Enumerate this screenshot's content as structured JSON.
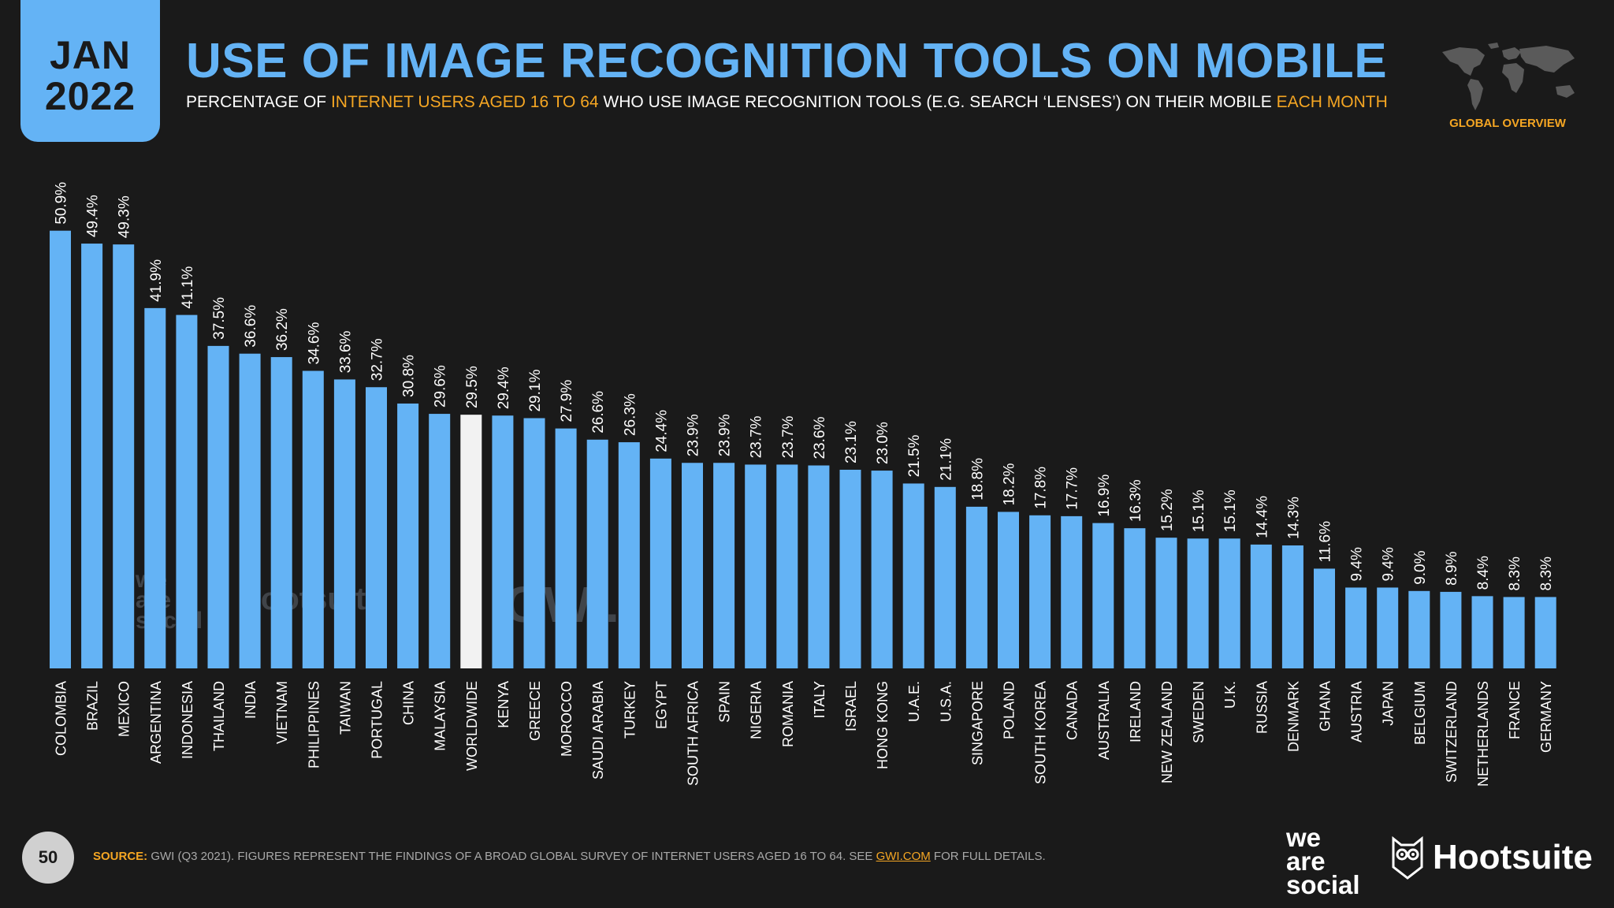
{
  "header": {
    "date_month": "JAN",
    "date_year": "2022",
    "title": "USE OF IMAGE RECOGNITION TOOLS ON MOBILE",
    "subtitle_part1": "PERCENTAGE OF ",
    "subtitle_highlight1": "INTERNET USERS AGED 16 TO 64",
    "subtitle_part2": " WHO USE IMAGE RECOGNITION TOOLS (E.G. SEARCH ‘LENSES’) ON THEIR MOBILE ",
    "subtitle_highlight2": "EACH MONTH",
    "global_overview": "GLOBAL OVERVIEW"
  },
  "footer": {
    "page_number": "50",
    "source_label": "SOURCE:",
    "source_text": " GWI (Q3 2021). FIGURES REPRESENT THE FINDINGS OF A BROAD GLOBAL SURVEY OF INTERNET USERS AGED 16 TO 64. SEE ",
    "source_link": "GWI.COM",
    "source_tail": " FOR FULL DETAILS.",
    "logo_we_are_social": [
      "we",
      "are",
      "social"
    ],
    "logo_hootsuite": "Hootsuite"
  },
  "watermarks": {
    "we_are_social": [
      "we",
      "are",
      "social"
    ],
    "hootsuite": "Hootsuite",
    "gwi": "GWI."
  },
  "colors": {
    "background": "#1a1a1a",
    "bar": "#64b3f5",
    "highlight_bar": "#f2f2f2",
    "accent": "#f5a623",
    "title": "#64b3f5"
  },
  "chart_data": {
    "type": "bar",
    "title": "USE OF IMAGE RECOGNITION TOOLS ON MOBILE",
    "xlabel": "",
    "ylabel": "",
    "ylim": [
      0,
      55
    ],
    "grid": false,
    "highlight_category": "WORLDWIDE",
    "categories": [
      "COLOMBIA",
      "BRAZIL",
      "MEXICO",
      "ARGENTINA",
      "INDONESIA",
      "THAILAND",
      "INDIA",
      "VIETNAM",
      "PHILIPPINES",
      "TAIWAN",
      "PORTUGAL",
      "CHINA",
      "MALAYSIA",
      "WORLDWIDE",
      "KENYA",
      "GREECE",
      "MOROCCO",
      "SAUDI ARABIA",
      "TURKEY",
      "EGYPT",
      "SOUTH AFRICA",
      "SPAIN",
      "NIGERIA",
      "ROMANIA",
      "ITALY",
      "ISRAEL",
      "HONG KONG",
      "U.A.E.",
      "U.S.A.",
      "SINGAPORE",
      "POLAND",
      "SOUTH KOREA",
      "CANADA",
      "AUSTRALIA",
      "IRELAND",
      "NEW ZEALAND",
      "SWEDEN",
      "U.K.",
      "RUSSIA",
      "DENMARK",
      "GHANA",
      "AUSTRIA",
      "JAPAN",
      "BELGIUM",
      "SWITZERLAND",
      "NETHERLANDS",
      "FRANCE",
      "GERMANY"
    ],
    "values": [
      50.9,
      49.4,
      49.3,
      41.9,
      41.1,
      37.5,
      36.6,
      36.2,
      34.6,
      33.6,
      32.7,
      30.8,
      29.6,
      29.5,
      29.4,
      29.1,
      27.9,
      26.6,
      26.3,
      24.4,
      23.9,
      23.9,
      23.7,
      23.7,
      23.6,
      23.1,
      23.0,
      21.5,
      21.1,
      18.8,
      18.2,
      17.8,
      17.7,
      16.9,
      16.3,
      15.2,
      15.1,
      15.1,
      14.4,
      14.3,
      11.6,
      9.4,
      9.4,
      9.0,
      8.9,
      8.4,
      8.3,
      8.3
    ],
    "value_labels": [
      "50.9%",
      "49.4%",
      "49.3%",
      "41.9%",
      "41.1%",
      "37.5%",
      "36.6%",
      "36.2%",
      "34.6%",
      "33.6%",
      "32.7%",
      "30.8%",
      "29.6%",
      "29.5%",
      "29.4%",
      "29.1%",
      "27.9%",
      "26.6%",
      "26.3%",
      "24.4%",
      "23.9%",
      "23.9%",
      "23.7%",
      "23.7%",
      "23.6%",
      "23.1%",
      "23.0%",
      "21.5%",
      "21.1%",
      "18.8%",
      "18.2%",
      "17.8%",
      "17.7%",
      "16.9%",
      "16.3%",
      "15.2%",
      "15.1%",
      "15.1%",
      "14.4%",
      "14.3%",
      "11.6%",
      "9.4%",
      "9.4%",
      "9.0%",
      "8.9%",
      "8.4%",
      "8.3%",
      "8.3%"
    ]
  }
}
